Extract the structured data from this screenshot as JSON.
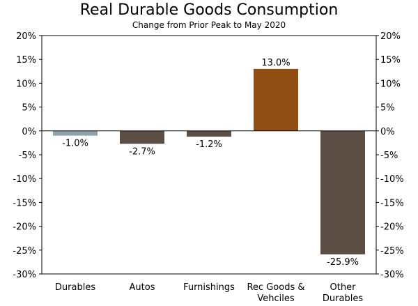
{
  "chart_data": {
    "type": "bar",
    "title": "Real Durable Goods Consumption",
    "subtitle": "Change from Prior Peak to May 2020",
    "categories": [
      {
        "line1": "Durables",
        "line2": ""
      },
      {
        "line1": "Autos",
        "line2": ""
      },
      {
        "line1": "Furnishings",
        "line2": ""
      },
      {
        "line1": "Rec Goods &",
        "line2": "Vehciles"
      },
      {
        "line1": "Other",
        "line2": "Durables"
      }
    ],
    "values": [
      -1.0,
      -2.7,
      -1.2,
      13.0,
      -25.9
    ],
    "data_labels": [
      "-1.0%",
      "-2.7%",
      "-1.2%",
      "13.0%",
      "-25.9%"
    ],
    "colors": [
      "#8fa3ae",
      "#5b4f45",
      "#5b4f45",
      "#8f4f14",
      "#5b4f45"
    ],
    "ylim": [
      -30,
      20
    ],
    "yticks": [
      20,
      15,
      10,
      5,
      0,
      -5,
      -10,
      -15,
      -20,
      -25,
      -30
    ],
    "ytick_labels": [
      "20%",
      "15%",
      "10%",
      "5%",
      "0%",
      "-5%",
      "-10%",
      "-15%",
      "-20%",
      "-25%",
      "-30%"
    ],
    "xlabel": "",
    "ylabel": "",
    "grid": false,
    "legend": "none"
  }
}
